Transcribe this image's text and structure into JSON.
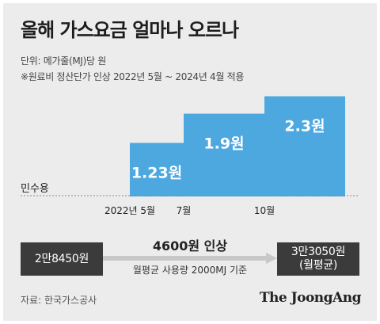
{
  "title": "올해 가스요금 얼마나 오르나",
  "unit_note": "단위: 메가줄(MJ)당 원",
  "period_note": "※원료비 정산단가 인상 2022년 5월 ~ 2024년 4월 적용",
  "chart_data": {
    "type": "bar",
    "series_label": "민수용",
    "categories": [
      "2022년 5월",
      "7월",
      "10월"
    ],
    "values": [
      1.23,
      1.9,
      2.3
    ],
    "value_labels": [
      "1.23원",
      "1.9원",
      "2.3원"
    ],
    "bar_color": "#4ea8e0"
  },
  "price_change": {
    "from": "2만8450원",
    "to_line1": "3만3050원",
    "to_line2": "(월평균)",
    "increase": "4600원 인상",
    "basis": "월평균 사용량 2000MJ 기준"
  },
  "source": "자료: 한국가스공사",
  "publisher": "The JoongAng"
}
